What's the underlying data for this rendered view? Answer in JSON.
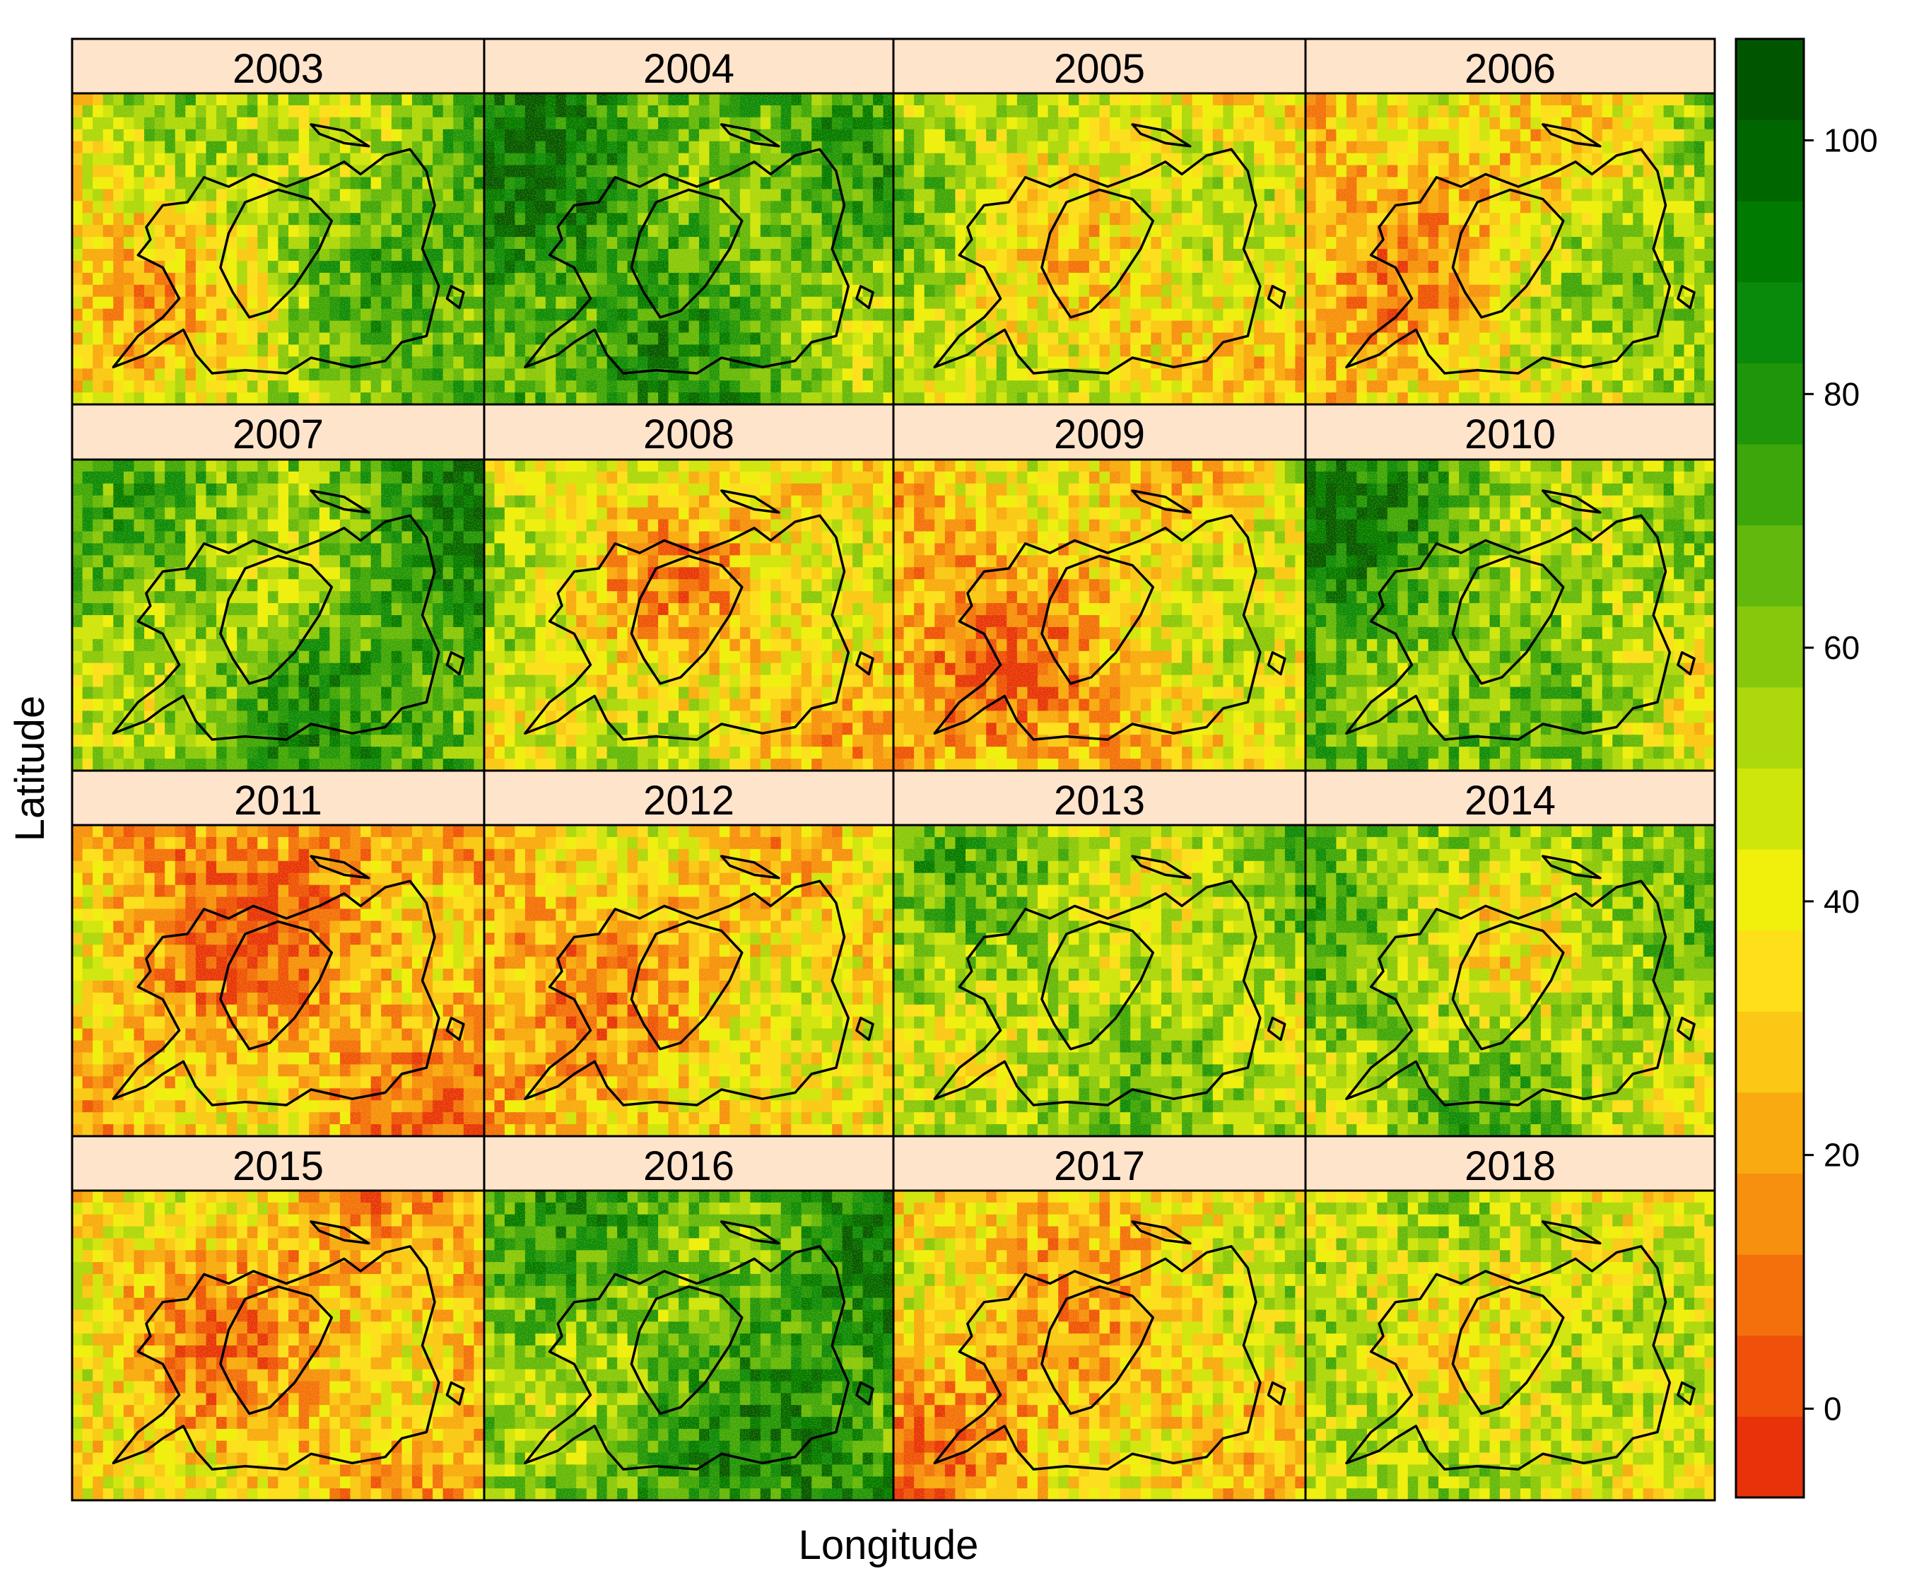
{
  "axes": {
    "xlabel": "Longitude",
    "ylabel": "Latitude"
  },
  "colors": {
    "strip_background": "#ffe4cc",
    "border": "#000000",
    "outline": "#000000",
    "palette_low_to_high": [
      "#e8320a",
      "#ef510a",
      "#f4700d",
      "#f7900f",
      "#f9aa10",
      "#fbc815",
      "#fde01a",
      "#f0f00c",
      "#cfe60c",
      "#acd80c",
      "#88c80c",
      "#62b80c",
      "#3ca60a",
      "#1f950a",
      "#0a8a0a",
      "#007a00",
      "#006600",
      "#005600"
    ]
  },
  "colorbar": {
    "range": [
      -7,
      108
    ],
    "ticks": [
      0,
      20,
      40,
      60,
      80,
      100
    ],
    "tick_labels": [
      "0",
      "20",
      "40",
      "60",
      "80",
      "100"
    ]
  },
  "panels": [
    {
      "year": "2003",
      "greenness": 0.55
    },
    {
      "year": "2004",
      "greenness": 0.74
    },
    {
      "year": "2005",
      "greenness": 0.45
    },
    {
      "year": "2006",
      "greenness": 0.42
    },
    {
      "year": "2007",
      "greenness": 0.7
    },
    {
      "year": "2008",
      "greenness": 0.4
    },
    {
      "year": "2009",
      "greenness": 0.34
    },
    {
      "year": "2010",
      "greenness": 0.65
    },
    {
      "year": "2011",
      "greenness": 0.25
    },
    {
      "year": "2012",
      "greenness": 0.34
    },
    {
      "year": "2013",
      "greenness": 0.58
    },
    {
      "year": "2014",
      "greenness": 0.58
    },
    {
      "year": "2015",
      "greenness": 0.32
    },
    {
      "year": "2016",
      "greenness": 0.74
    },
    {
      "year": "2017",
      "greenness": 0.34
    },
    {
      "year": "2018",
      "greenness": 0.5
    }
  ]
}
